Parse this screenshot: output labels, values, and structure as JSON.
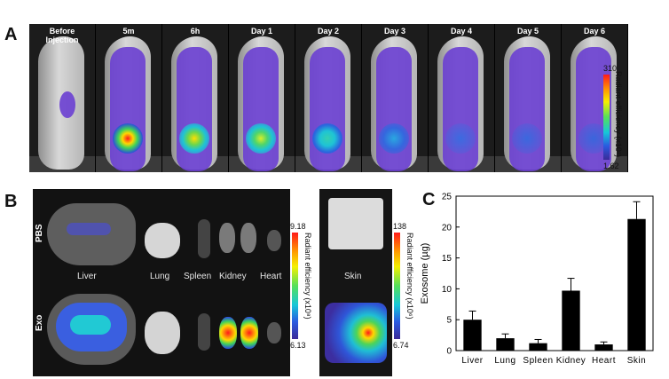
{
  "panelA": {
    "letter": "A",
    "timepoints": [
      "Before\nInjection",
      "5m",
      "6h",
      "Day 1",
      "Day 2",
      "Day 3",
      "Day 4",
      "Day 5",
      "Day 6"
    ],
    "colorbar": {
      "max": "310",
      "min": "1.62",
      "label": "Radiant efficiency (x10⁷)"
    }
  },
  "panelB": {
    "letter": "B",
    "row_labels": [
      "PBS",
      "Exo"
    ],
    "organs": [
      "Liver",
      "Lung",
      "Spleen",
      "Kidney",
      "Heart"
    ],
    "skin_label": "Skin",
    "colorbar_organs": {
      "max": "9.18",
      "min": "6.13",
      "label": "Radiant efficiency (x10⁸)"
    },
    "colorbar_skin": {
      "max": "138",
      "min": "6.74",
      "label": "Radiant efficiency (x10⁶)"
    }
  },
  "panelC": {
    "letter": "C",
    "chart_data": {
      "type": "bar",
      "categories": [
        "Liver",
        "Lung",
        "Spleen",
        "Kidney",
        "Heart",
        "Skin"
      ],
      "values": [
        5.0,
        2.0,
        1.2,
        9.7,
        1.0,
        21.3
      ],
      "errors": [
        1.4,
        0.7,
        0.6,
        2.0,
        0.4,
        2.8
      ],
      "title": "",
      "xlabel": "",
      "ylabel": "Exosome (µg)",
      "ylim": [
        0,
        25
      ],
      "yticks": [
        0,
        5,
        10,
        15,
        20,
        25
      ],
      "grid": false,
      "bar_color": "#000000"
    }
  }
}
